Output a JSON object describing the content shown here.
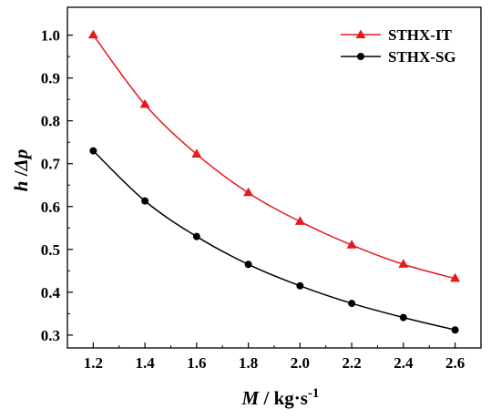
{
  "chart_data": {
    "type": "line",
    "x": [
      1.2,
      1.4,
      1.6,
      1.8,
      2.0,
      2.2,
      2.4,
      2.6
    ],
    "series": [
      {
        "name": "STHX-IT",
        "values": [
          1.0,
          0.838,
          0.722,
          0.632,
          0.565,
          0.51,
          0.465,
          0.432
        ],
        "color": "#e8191c",
        "marker": "triangle"
      },
      {
        "name": "STHX-SG",
        "values": [
          0.73,
          0.613,
          0.53,
          0.465,
          0.415,
          0.374,
          0.341,
          0.312
        ],
        "color": "#000000",
        "marker": "circle"
      }
    ],
    "xlabel": {
      "var": "M",
      "units": " / kg·s",
      "sup": "-1"
    },
    "ylabel": {
      "var": "h",
      "slash": " /",
      "delta": "Δ",
      "var2": "p"
    },
    "xlim": [
      1.1,
      2.7
    ],
    "ylim": [
      0.27,
      1.065
    ],
    "xticks": [
      1.2,
      1.4,
      1.6,
      1.8,
      2.0,
      2.2,
      2.4,
      2.6
    ],
    "xtick_labels": [
      "1.2",
      "1.4",
      "1.6",
      "1.8",
      "2.0",
      "2.2",
      "2.4",
      "2.6"
    ],
    "yticks": [
      0.3,
      0.4,
      0.5,
      0.6,
      0.7,
      0.8,
      0.9,
      1.0
    ],
    "ytick_labels": [
      "0.3",
      "0.4",
      "0.5",
      "0.6",
      "0.7",
      "0.8",
      "0.9",
      "1.0"
    ],
    "grid": false,
    "legend_position": "top-right"
  }
}
